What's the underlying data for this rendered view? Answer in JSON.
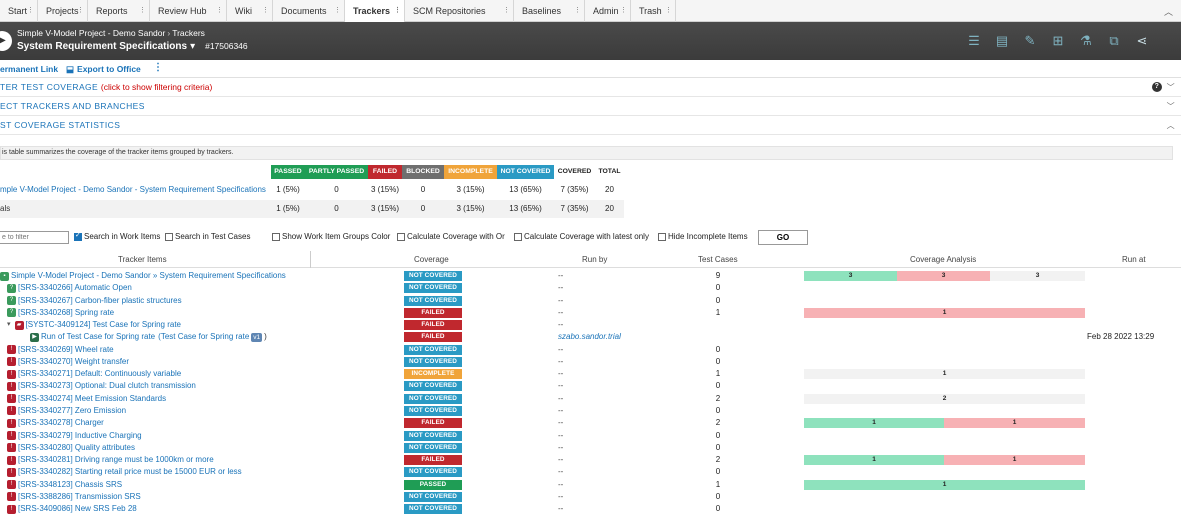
{
  "nav": {
    "tabs": [
      "Start",
      "Projects",
      "Reports",
      "Review Hub",
      "Wiki",
      "Documents",
      "Trackers",
      "SCM Repositories",
      "Baselines",
      "Admin",
      "Trash"
    ],
    "active": "Trackers"
  },
  "header": {
    "breadcrumb_project": "Simple V-Model Project - Demo Sandor",
    "breadcrumb_section": "Trackers",
    "title": "System Requirement Specifications",
    "tracker_id": "#17506346"
  },
  "actions": {
    "permanent_link": "ermanent Link",
    "export": "Export to Office",
    "more": "⋮"
  },
  "sections": {
    "filter_title": "TER TEST COVERAGE",
    "filter_hint": "(click to show filtering criteria)",
    "trackers_title": "ECT TRACKERS AND BRANCHES",
    "stats_title": "ST COVERAGE STATISTICS",
    "info_text": "is table summarizes the coverage of the tracker items grouped by trackers."
  },
  "stats": {
    "headers": [
      "PASSED",
      "PARTLY PASSED",
      "FAILED",
      "BLOCKED",
      "INCOMPLETE",
      "NOT COVERED",
      "COVERED",
      "TOTAL"
    ],
    "header_colors": [
      "#1f9d55",
      "#1f9d55",
      "#c0282e",
      "#6f6f6f",
      "#f0a43a",
      "#2a9ac4",
      "#ffffff",
      "#ffffff"
    ],
    "rows": [
      {
        "name": "mple V-Model Project - Demo Sandor - System Requirement Specifications",
        "values": [
          "1 (5%)",
          "0",
          "3 (15%)",
          "0",
          "3 (15%)",
          "13 (65%)",
          "7 (35%)",
          "20"
        ]
      },
      {
        "name": "als",
        "values": [
          "1 (5%)",
          "0",
          "3 (15%)",
          "0",
          "3 (15%)",
          "13 (65%)",
          "7 (35%)",
          "20"
        ]
      }
    ]
  },
  "filters": {
    "placeholder": "e to filter",
    "search_work_items": "Search in Work Items",
    "search_test_cases": "Search in Test Cases",
    "show_group_color": "Show Work Item Groups Color",
    "coverage_or": "Calculate Coverage with Or",
    "coverage_latest": "Calculate Coverage with latest only",
    "hide_incomplete": "Hide Incomplete Items",
    "go": "GO"
  },
  "table": {
    "columns": [
      "Tracker Items",
      "Coverage",
      "Run by",
      "Test Cases",
      "Coverage Analysis",
      "Run at"
    ],
    "rows": [
      {
        "name": "Simple V-Model Project - Demo Sandor » System Requirement Specifications",
        "icon": "green-folder",
        "indent": 0,
        "coverage": "NOT COVERED",
        "runby": "--",
        "tc": "9",
        "runat": "",
        "bars": [
          {
            "v": "3",
            "c": "#8ee2bd",
            "w": 93
          },
          {
            "v": "3",
            "c": "#f7b1b4",
            "w": 93
          },
          {
            "v": "3",
            "c": "#f2f2f2",
            "w": 95
          }
        ]
      },
      {
        "name": "[SRS-3340266] Automatic Open",
        "icon": "green",
        "indent": 1,
        "coverage": "NOT COVERED",
        "runby": "--",
        "tc": "0",
        "runat": "",
        "bars": []
      },
      {
        "name": "[SRS-3340267] Carbon-fiber plastic structures",
        "icon": "green",
        "indent": 1,
        "coverage": "NOT COVERED",
        "runby": "--",
        "tc": "0",
        "runat": "",
        "bars": []
      },
      {
        "name": "[SRS-3340268] Spring rate",
        "icon": "green",
        "indent": 1,
        "coverage": "FAILED",
        "runby": "--",
        "tc": "1",
        "runat": "",
        "bars": [
          {
            "v": "1",
            "c": "#f7b1b4",
            "w": 281
          }
        ]
      },
      {
        "name": "[SYSTC-3409124] Test Case for Spring rate",
        "icon": "red",
        "indent": 2,
        "coverage": "FAILED",
        "runby": "--",
        "tc": "",
        "runat": "",
        "bars": []
      },
      {
        "name": "Run of Test Case for Spring rate",
        "icon": "dark",
        "indent": 3,
        "coverage": "FAILED",
        "runby": "szabo.sandor.trial",
        "tc": "",
        "runat": "Feb 28 2022 13:29",
        "bars": [],
        "run_link": "Test Case for Spring rate",
        "version": "v1"
      },
      {
        "name": "[SRS-3340269] Wheel rate",
        "icon": "red",
        "indent": 1,
        "coverage": "NOT COVERED",
        "runby": "--",
        "tc": "0",
        "runat": "",
        "bars": []
      },
      {
        "name": "[SRS-3340270] Weight transfer",
        "icon": "red",
        "indent": 1,
        "coverage": "NOT COVERED",
        "runby": "--",
        "tc": "0",
        "runat": "",
        "bars": []
      },
      {
        "name": "[SRS-3340271] Default: Continuously variable",
        "icon": "red",
        "indent": 1,
        "coverage": "INCOMPLETE",
        "runby": "--",
        "tc": "1",
        "runat": "",
        "bars": [
          {
            "v": "1",
            "c": "#f2f2f2",
            "w": 281
          }
        ]
      },
      {
        "name": "[SRS-3340273] Optional: Dual clutch transmission",
        "icon": "red",
        "indent": 1,
        "coverage": "NOT COVERED",
        "runby": "--",
        "tc": "0",
        "runat": "",
        "bars": []
      },
      {
        "name": "[SRS-3340274] Meet Emission Standards",
        "icon": "red",
        "indent": 1,
        "coverage": "NOT COVERED",
        "runby": "--",
        "tc": "2",
        "runat": "",
        "bars": [
          {
            "v": "2",
            "c": "#f2f2f2",
            "w": 281
          }
        ]
      },
      {
        "name": "[SRS-3340277] Zero Emission",
        "icon": "red",
        "indent": 1,
        "coverage": "NOT COVERED",
        "runby": "--",
        "tc": "0",
        "runat": "",
        "bars": []
      },
      {
        "name": "[SRS-3340278] Charger",
        "icon": "red",
        "indent": 1,
        "coverage": "FAILED",
        "runby": "--",
        "tc": "2",
        "runat": "",
        "bars": [
          {
            "v": "1",
            "c": "#8ee2bd",
            "w": 140
          },
          {
            "v": "1",
            "c": "#f7b1b4",
            "w": 141
          }
        ]
      },
      {
        "name": "[SRS-3340279] Inductive Charging",
        "icon": "red",
        "indent": 1,
        "coverage": "NOT COVERED",
        "runby": "--",
        "tc": "0",
        "runat": "",
        "bars": []
      },
      {
        "name": "[SRS-3340280] Quality attributes",
        "icon": "red",
        "indent": 1,
        "coverage": "NOT COVERED",
        "runby": "--",
        "tc": "0",
        "runat": "",
        "bars": []
      },
      {
        "name": "[SRS-3340281] Driving range must be 1000km or more",
        "icon": "red",
        "indent": 1,
        "coverage": "FAILED",
        "runby": "--",
        "tc": "2",
        "runat": "",
        "bars": [
          {
            "v": "1",
            "c": "#8ee2bd",
            "w": 140
          },
          {
            "v": "1",
            "c": "#f7b1b4",
            "w": 141
          }
        ]
      },
      {
        "name": "[SRS-3340282] Starting retail price must be 15000 EUR or less",
        "icon": "red",
        "indent": 1,
        "coverage": "NOT COVERED",
        "runby": "--",
        "tc": "0",
        "runat": "",
        "bars": []
      },
      {
        "name": "[SRS-3348123] Chassis SRS",
        "icon": "red",
        "indent": 1,
        "coverage": "PASSED",
        "runby": "--",
        "tc": "1",
        "runat": "",
        "bars": [
          {
            "v": "1",
            "c": "#8ee2bd",
            "w": 281
          }
        ]
      },
      {
        "name": "[SRS-3388286] Transmission SRS",
        "icon": "red",
        "indent": 1,
        "coverage": "NOT COVERED",
        "runby": "--",
        "tc": "0",
        "runat": "",
        "bars": []
      },
      {
        "name": "[SRS-3409086] New SRS Feb 28",
        "icon": "red",
        "indent": 1,
        "coverage": "NOT COVERED",
        "runby": "--",
        "tc": "0",
        "runat": "",
        "bars": []
      }
    ]
  },
  "colors": {
    "PASSED": "#1f9d55",
    "FAILED": "#c0282e",
    "INCOMPLETE": "#f0a43a",
    "NOT COVERED": "#2a9ac4"
  }
}
